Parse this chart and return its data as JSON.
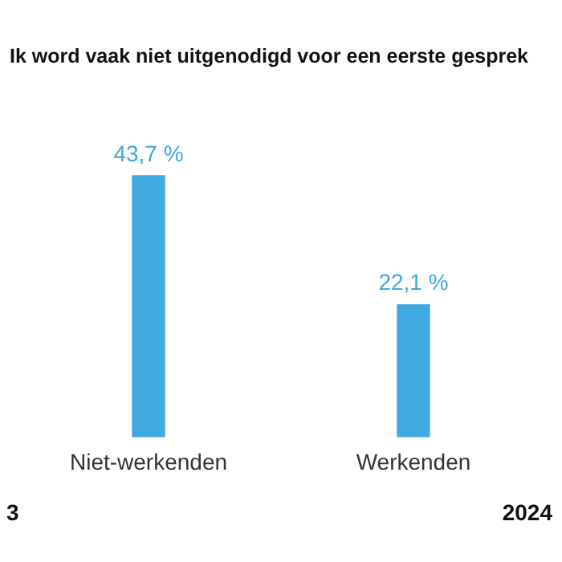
{
  "chart_data": {
    "type": "bar",
    "title": "Ik word vaak niet uitgenodigd voor een eerste gesprek",
    "categories": [
      "Niet-werkenden",
      "Werkenden"
    ],
    "values": [
      43.7,
      22.1
    ],
    "value_labels": [
      "43,7 %",
      "22,1 %"
    ],
    "color": "#3fa9e0",
    "tick_labels": "x",
    "grid": false,
    "legend": false,
    "annotations": [
      "3",
      "2024"
    ]
  }
}
